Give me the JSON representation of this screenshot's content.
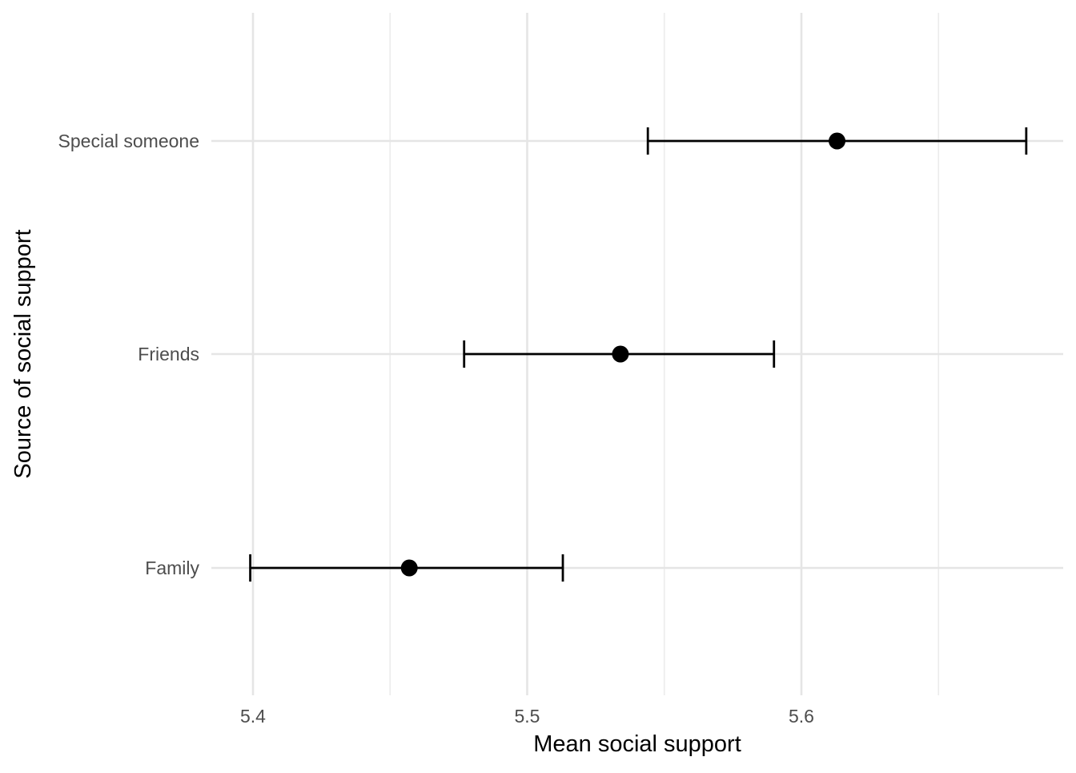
{
  "chart_data": {
    "type": "scatter",
    "orientation": "horizontal",
    "title": "",
    "xlabel": "Mean social support",
    "ylabel": "Source of social support",
    "xlim": [
      5.386,
      5.69
    ],
    "x_ticks": [
      5.4,
      5.5,
      5.6
    ],
    "x_tick_labels": [
      "5.4",
      "5.5",
      "5.6"
    ],
    "x_minor_gridlines": [
      5.45,
      5.55,
      5.65
    ],
    "categories": [
      "Family",
      "Friends",
      "Special someone"
    ],
    "series": [
      {
        "points": [
          {
            "category": "Family",
            "mean": 5.457,
            "lower": 5.399,
            "upper": 5.513
          },
          {
            "category": "Friends",
            "mean": 5.534,
            "lower": 5.477,
            "upper": 5.59
          },
          {
            "category": "Special someone",
            "mean": 5.613,
            "lower": 5.544,
            "upper": 5.682
          }
        ]
      }
    ],
    "error_bars": true,
    "grid": true,
    "legend": "none",
    "colors": {
      "point": "#000000",
      "errorbar": "#000000",
      "grid_major": "#e5e5e5",
      "grid_minor": "#ececec",
      "tick_text": "#4d4d4d",
      "axis_title": "#000000"
    }
  }
}
